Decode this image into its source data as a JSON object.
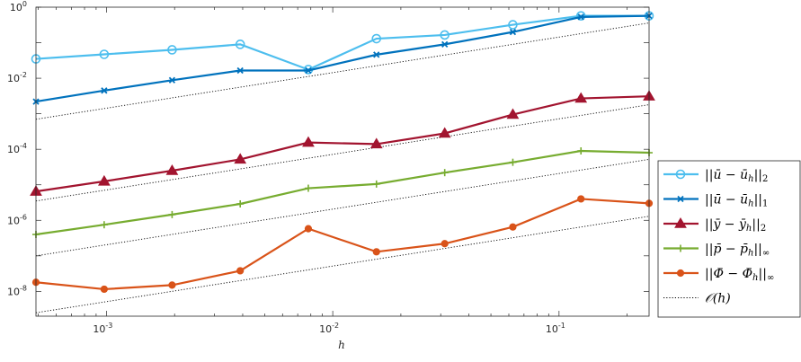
{
  "chart_data": {
    "type": "line",
    "title": "",
    "xlabel": "h",
    "ylabel": "",
    "xscale": "log",
    "yscale": "log",
    "xlim": [
      0.000488,
      0.25
    ],
    "ylim": [
      2e-09,
      1
    ],
    "grid": false,
    "box": true,
    "legend_position": "outside-right",
    "x": [
      0.000488,
      0.000977,
      0.00195,
      0.0039,
      0.0078,
      0.0156,
      0.03125,
      0.0625,
      0.125,
      0.25
    ],
    "x_ticks": [
      {
        "value": 0.001,
        "base": "10",
        "exp": "-3"
      },
      {
        "value": 0.01,
        "base": "10",
        "exp": "-2"
      },
      {
        "value": 0.1,
        "base": "10",
        "exp": "-1"
      }
    ],
    "y_ticks": [
      {
        "value": 1,
        "base": "10",
        "exp": "0"
      },
      {
        "value": 0.01,
        "base": "10",
        "exp": "-2"
      },
      {
        "value": 0.0001,
        "base": "10",
        "exp": "-4"
      },
      {
        "value": 1e-06,
        "base": "10",
        "exp": "-6"
      },
      {
        "value": 1e-08,
        "base": "10",
        "exp": "-8"
      }
    ],
    "series": [
      {
        "name": "||ū − ū_h||_2",
        "color": "#4DBEEE",
        "marker": "circle",
        "values": [
          0.035,
          0.047,
          0.063,
          0.09,
          0.0175,
          0.13,
          0.165,
          0.32,
          0.57,
          0.57
        ]
      },
      {
        "name": "||ū − ū_h||_1",
        "color": "#0072BD",
        "marker": "x",
        "values": [
          0.0022,
          0.0045,
          0.0088,
          0.0165,
          0.0165,
          0.046,
          0.09,
          0.2,
          0.53,
          0.57
        ]
      },
      {
        "name": "||ȳ − ȳ_h||_2",
        "color": "#A2142F",
        "marker": "triangle",
        "values": [
          6.5e-06,
          1.25e-05,
          2.5e-05,
          5.2e-05,
          0.000155,
          0.00014,
          0.00028,
          0.00095,
          0.0027,
          0.0031
        ]
      },
      {
        "name": "||p̄ − p̄_h||_∞",
        "color": "#77AC30",
        "marker": "plus",
        "values": [
          4e-07,
          7.5e-07,
          1.45e-06,
          2.9e-06,
          8e-06,
          1.05e-05,
          2.2e-05,
          4.3e-05,
          9e-05,
          8e-05
        ]
      },
      {
        "name": "||Φ̄ − Φ̄_h||_∞",
        "color": "#D95319",
        "marker": "dot",
        "values": [
          1.8e-08,
          1.15e-08,
          1.5e-08,
          3.8e-08,
          5.8e-07,
          1.3e-07,
          2.2e-07,
          6.5e-07,
          4e-06,
          3e-06
        ]
      },
      {
        "name": "O(h)",
        "color": "#000000",
        "marker": "none",
        "style": "dotted",
        "reference": true,
        "lines": [
          {
            "from": [
              0.000488,
              0.0007
            ],
            "to": [
              0.25,
              0.36
            ]
          },
          {
            "from": [
              0.000488,
              3.5e-06
            ],
            "to": [
              0.25,
              0.0018
            ]
          },
          {
            "from": [
              0.000488,
              1e-07
            ],
            "to": [
              0.25,
              5.2e-05
            ]
          },
          {
            "from": [
              0.000488,
              2.5e-09
            ],
            "to": [
              0.25,
              1.3e-06
            ]
          }
        ]
      }
    ],
    "legend": [
      {
        "prefix": "||",
        "var": "u",
        "bar": true,
        "mid": " − ",
        "sub": "h",
        "suffix": "||",
        "norm": "2"
      },
      {
        "prefix": "||",
        "var": "u",
        "bar": true,
        "mid": " − ",
        "sub": "h",
        "suffix": "||",
        "norm": "1"
      },
      {
        "prefix": "||",
        "var": "y",
        "bar": true,
        "mid": " − ",
        "sub": "h",
        "suffix": "||",
        "norm": "2"
      },
      {
        "prefix": "||",
        "var": "p",
        "bar": true,
        "mid": " − ",
        "sub": "h",
        "suffix": "||",
        "norm": "∞"
      },
      {
        "prefix": "||",
        "var": "Φ",
        "bar": true,
        "mid": " − ",
        "sub": "h",
        "suffix": "||",
        "norm": "∞"
      },
      {
        "prefix": "",
        "var": "𝒪(h)",
        "bar": false,
        "mid": "",
        "sub": "",
        "suffix": "",
        "norm": ""
      }
    ]
  }
}
